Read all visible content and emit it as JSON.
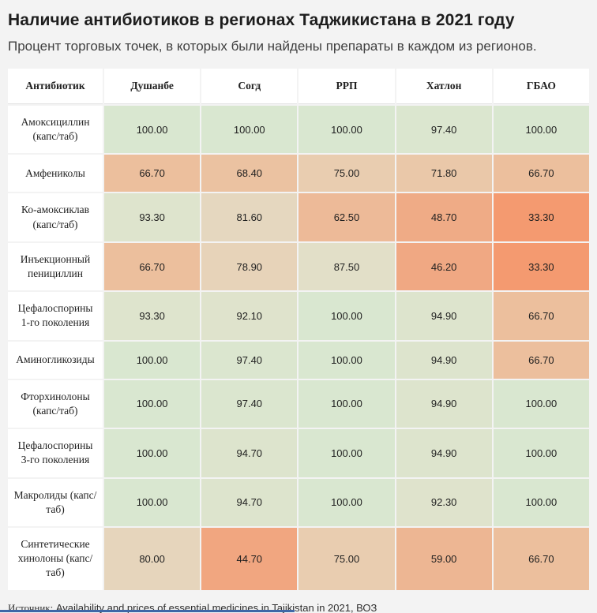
{
  "chart_data": {
    "type": "heatmap",
    "title": "Наличие антибиотиков в регионах Таджикистана в 2021 году",
    "subtitle": "Процент торговых точек, в которых были найдены препараты в каждом из регионов.",
    "row_header": "Антибиотик",
    "columns": [
      "Душанбе",
      "Согд",
      "РРП",
      "Хатлон",
      "ГБАО"
    ],
    "rows": [
      "Амоксициллин (капс/таб)",
      "Амфениколы",
      "Ко-амоксиклав (капс/таб)",
      "Инъекционный пенициллин",
      "Цефалоспорины 1-го поколения",
      "Аминогликозиды",
      "Фторхинолоны (капс/таб)",
      "Цефалоспорины 3-го поколения",
      "Макролиды (капс/таб)",
      "Синтетические хинолоны (капс/таб)"
    ],
    "values": [
      [
        100.0,
        100.0,
        100.0,
        97.4,
        100.0
      ],
      [
        66.7,
        68.4,
        75.0,
        71.8,
        66.7
      ],
      [
        93.3,
        81.6,
        62.5,
        48.7,
        33.3
      ],
      [
        66.7,
        78.9,
        87.5,
        46.2,
        33.3
      ],
      [
        93.3,
        92.1,
        100.0,
        94.9,
        66.7
      ],
      [
        100.0,
        97.4,
        100.0,
        94.9,
        66.7
      ],
      [
        100.0,
        97.4,
        100.0,
        94.9,
        100.0
      ],
      [
        100.0,
        94.7,
        100.0,
        94.9,
        100.0
      ],
      [
        100.0,
        94.7,
        100.0,
        92.3,
        100.0
      ],
      [
        80.0,
        44.7,
        75.0,
        59.0,
        66.7
      ]
    ],
    "value_decimals": 2,
    "value_range": [
      33.3,
      100.0
    ],
    "color_scale": {
      "stops": [
        [
          33.3,
          "#f49a70"
        ],
        [
          50.0,
          "#efac88"
        ],
        [
          66.7,
          "#ecbf9d"
        ],
        [
          75.0,
          "#e9cdb0"
        ],
        [
          80.0,
          "#e6d5bc"
        ],
        [
          87.5,
          "#e2dfc8"
        ],
        [
          92.0,
          "#dfe3cc"
        ],
        [
          100.0,
          "#d9e7d0"
        ]
      ],
      "low_color": "#f49a70",
      "mid_color": "#e9cdb0",
      "high_color": "#d9e7d0"
    },
    "grid": false,
    "legend": "none"
  },
  "footer": {
    "source_label": "Источник:",
    "source_link_text": "Availability and prices of essential medicines in Tajikistan in 2021, ВОЗ"
  },
  "theme": {
    "page_background": "#f3f3f3",
    "cell_panel_background": "#ffffff",
    "title_color": "#1d1d1d",
    "subtitle_color": "#3f3f3f",
    "cell_text_color": "#1f1f1f",
    "bottom_bar_color": "#4068a7"
  }
}
